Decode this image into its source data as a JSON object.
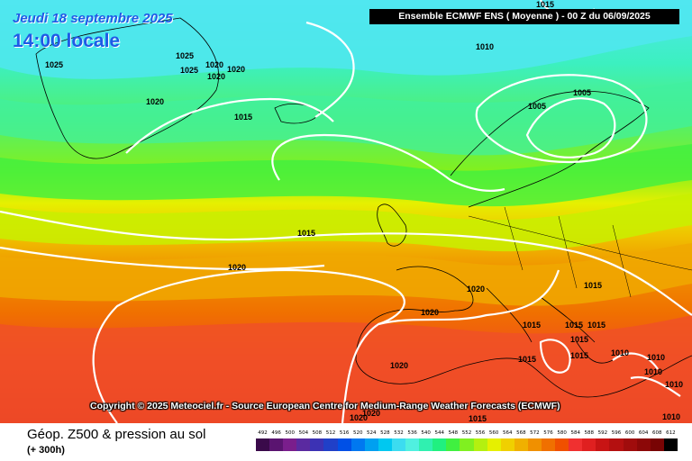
{
  "header": {
    "date": "Jeudi 18 septembre 2025",
    "time": "14:00 locale",
    "run": "Ensemble ECMWF ENS  ( Moyenne )  -  00 Z du 06/09/2025"
  },
  "copyright": "Copyright © 2025 Meteociel.fr - Source European Centre for Medium-Range Weather Forecasts (ECMWF)",
  "legend": {
    "title": "Géop. Z500 & pression au sol",
    "subtitle": "(+ 300h)",
    "levels": [
      "492",
      "496",
      "500",
      "504",
      "508",
      "512",
      "516",
      "520",
      "524",
      "528",
      "532",
      "536",
      "540",
      "544",
      "548",
      "552",
      "556",
      "560",
      "564",
      "568",
      "572",
      "576",
      "580",
      "584",
      "588",
      "592",
      "596",
      "600",
      "604",
      "608",
      "612"
    ],
    "colors": [
      "#3a0a4a",
      "#5a1470",
      "#7a1e8c",
      "#5a2aa0",
      "#3c32b4",
      "#2040c8",
      "#0050e6",
      "#0078f0",
      "#00a0f0",
      "#00c8f0",
      "#3cdcf0",
      "#50f0e0",
      "#30f0b0",
      "#20f080",
      "#40f040",
      "#80f020",
      "#b4f010",
      "#e6f000",
      "#f0d000",
      "#f0b000",
      "#f09000",
      "#f07000",
      "#f05000",
      "#f03030",
      "#e02020",
      "#c81414",
      "#b41010",
      "#a00c0c",
      "#8c0808",
      "#780404",
      "#000000"
    ]
  },
  "map": {
    "isobar_labels": [
      "1025",
      "1025",
      "1025",
      "1020",
      "1020",
      "1020",
      "1020",
      "1015",
      "1010",
      "1005",
      "1005",
      "1015",
      "1015",
      "1020",
      "1020",
      "1020",
      "1020",
      "1015",
      "1015",
      "1015",
      "1015",
      "1015",
      "1015",
      "1010",
      "1010",
      "1010",
      "1010",
      "1010",
      "1020",
      "1020",
      "1015",
      "1015"
    ]
  }
}
